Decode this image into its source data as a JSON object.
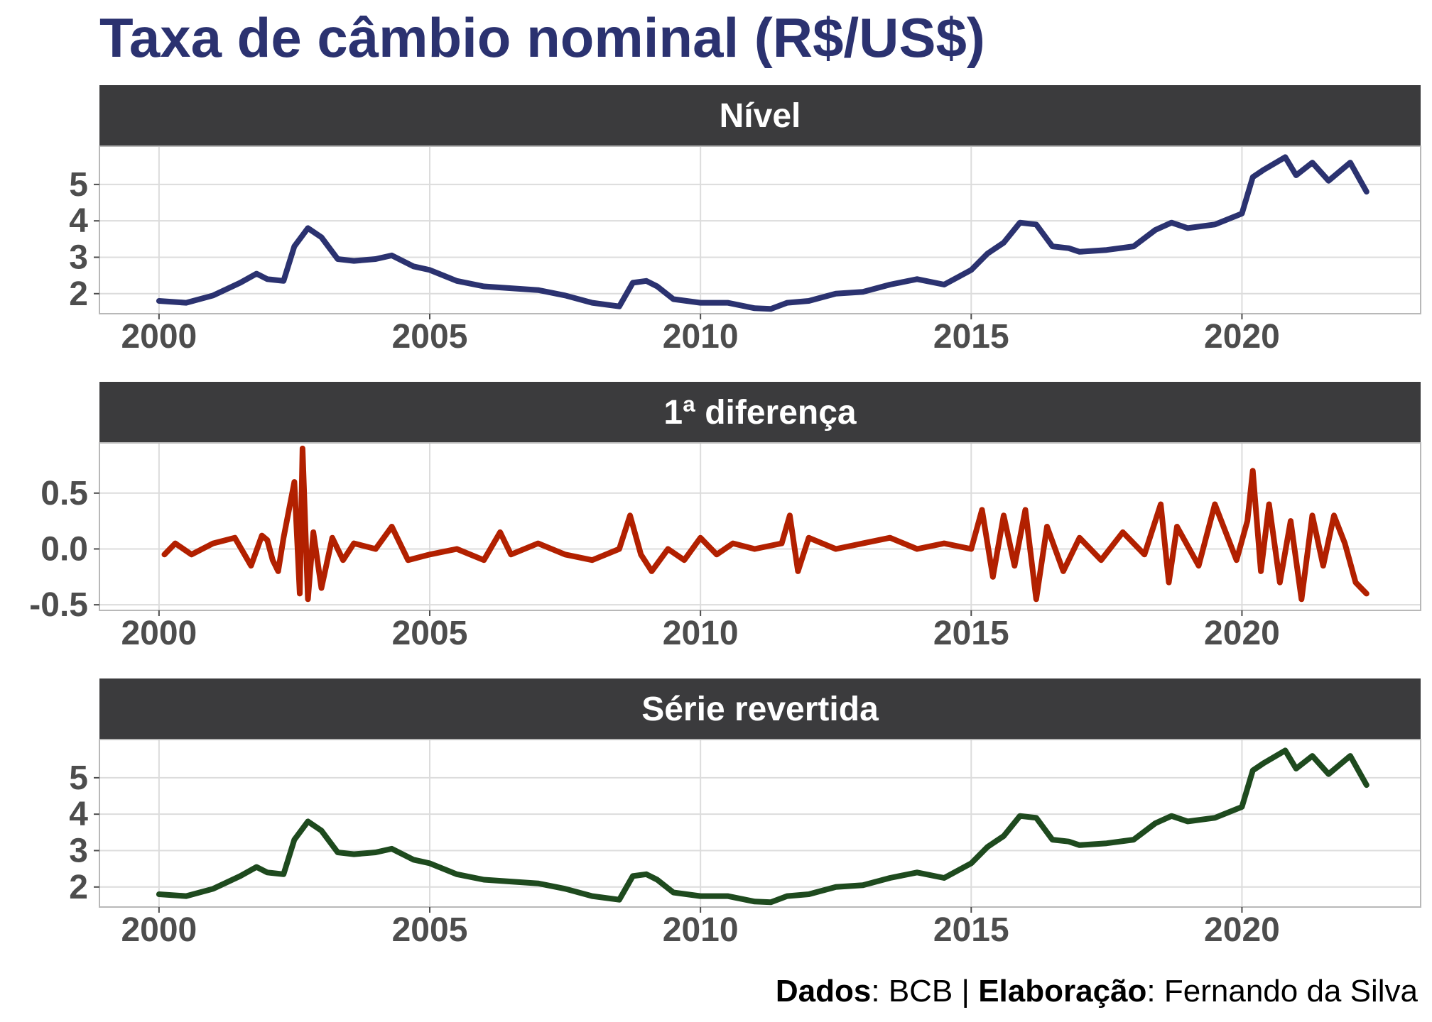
{
  "title": "Taxa de câmbio nominal (R$/US$)",
  "caption": {
    "source_label": "Dados",
    "source_value": "BCB",
    "separator": "|",
    "author_label": "Elaboração",
    "author_value": "Fernando da Silva"
  },
  "chart_data": [
    {
      "type": "line",
      "title": "Nível",
      "color": "#2B3270",
      "xlabel": "",
      "ylabel": "",
      "xlim": [
        1998.9,
        2023.3
      ],
      "ylim": [
        1.45,
        6.05
      ],
      "xticks": [
        2000,
        2005,
        2010,
        2015,
        2020
      ],
      "yticks": [
        2,
        3,
        4,
        5
      ],
      "ytick_labels": [
        "2",
        "3",
        "4",
        "5"
      ],
      "grid": true,
      "series": [
        {
          "x": [
            2000.0,
            2000.5,
            2001.0,
            2001.5,
            2001.8,
            2002.0,
            2002.3,
            2002.5,
            2002.75,
            2003.0,
            2003.3,
            2003.6,
            2004.0,
            2004.3,
            2004.7,
            2005.0,
            2005.5,
            2006.0,
            2006.5,
            2007.0,
            2007.5,
            2008.0,
            2008.5,
            2008.75,
            2009.0,
            2009.2,
            2009.5,
            2010.0,
            2010.5,
            2011.0,
            2011.3,
            2011.6,
            2012.0,
            2012.5,
            2013.0,
            2013.5,
            2014.0,
            2014.5,
            2015.0,
            2015.3,
            2015.6,
            2015.9,
            2016.2,
            2016.5,
            2016.8,
            2017.0,
            2017.5,
            2018.0,
            2018.4,
            2018.7,
            2019.0,
            2019.5,
            2020.0,
            2020.2,
            2020.4,
            2020.8,
            2021.0,
            2021.3,
            2021.6,
            2022.0,
            2022.3
          ],
          "y": [
            1.8,
            1.75,
            1.95,
            2.3,
            2.55,
            2.4,
            2.35,
            3.3,
            3.8,
            3.55,
            2.95,
            2.9,
            2.95,
            3.05,
            2.75,
            2.65,
            2.35,
            2.2,
            2.15,
            2.1,
            1.95,
            1.75,
            1.65,
            2.3,
            2.35,
            2.2,
            1.85,
            1.75,
            1.75,
            1.6,
            1.58,
            1.75,
            1.8,
            2.0,
            2.05,
            2.25,
            2.4,
            2.25,
            2.65,
            3.1,
            3.4,
            3.95,
            3.9,
            3.3,
            3.25,
            3.15,
            3.2,
            3.3,
            3.75,
            3.95,
            3.8,
            3.9,
            4.2,
            5.2,
            5.4,
            5.75,
            5.25,
            5.6,
            5.1,
            5.6,
            4.8
          ]
        }
      ]
    },
    {
      "type": "line",
      "title": "1ª diferença",
      "color": "#B22000",
      "xlabel": "",
      "ylabel": "",
      "xlim": [
        1998.9,
        2023.3
      ],
      "ylim": [
        -0.55,
        0.95
      ],
      "xticks": [
        2000,
        2005,
        2010,
        2015,
        2020
      ],
      "yticks": [
        -0.5,
        0.0,
        0.5
      ],
      "ytick_labels": [
        "-0.5",
        "0.0",
        "0.5"
      ],
      "grid": true,
      "series": [
        {
          "x": [
            2000.1,
            2000.3,
            2000.6,
            2001.0,
            2001.4,
            2001.7,
            2001.9,
            2002.0,
            2002.1,
            2002.2,
            2002.3,
            2002.5,
            2002.6,
            2002.65,
            2002.75,
            2002.85,
            2003.0,
            2003.2,
            2003.4,
            2003.6,
            2004.0,
            2004.3,
            2004.6,
            2005.0,
            2005.5,
            2006.0,
            2006.3,
            2006.5,
            2007.0,
            2007.5,
            2008.0,
            2008.5,
            2008.7,
            2008.9,
            2009.1,
            2009.4,
            2009.7,
            2010.0,
            2010.3,
            2010.6,
            2011.0,
            2011.5,
            2011.65,
            2011.8,
            2012.0,
            2012.5,
            2013.0,
            2013.5,
            2014.0,
            2014.5,
            2015.0,
            2015.2,
            2015.4,
            2015.6,
            2015.8,
            2016.0,
            2016.2,
            2016.4,
            2016.7,
            2017.0,
            2017.4,
            2017.8,
            2018.2,
            2018.5,
            2018.65,
            2018.8,
            2019.2,
            2019.5,
            2019.9,
            2020.1,
            2020.2,
            2020.35,
            2020.5,
            2020.7,
            2020.9,
            2021.1,
            2021.3,
            2021.5,
            2021.7,
            2021.9,
            2022.1,
            2022.3
          ],
          "y": [
            -0.05,
            0.05,
            -0.05,
            0.05,
            0.1,
            -0.15,
            0.12,
            0.08,
            -0.1,
            -0.2,
            0.1,
            0.6,
            -0.4,
            0.9,
            -0.45,
            0.15,
            -0.35,
            0.1,
            -0.1,
            0.05,
            0.0,
            0.2,
            -0.1,
            -0.05,
            0.0,
            -0.1,
            0.15,
            -0.05,
            0.05,
            -0.05,
            -0.1,
            0.0,
            0.3,
            -0.05,
            -0.2,
            0.0,
            -0.1,
            0.1,
            -0.05,
            0.05,
            0.0,
            0.05,
            0.3,
            -0.2,
            0.1,
            0.0,
            0.05,
            0.1,
            0.0,
            0.05,
            0.0,
            0.35,
            -0.25,
            0.3,
            -0.15,
            0.35,
            -0.45,
            0.2,
            -0.2,
            0.1,
            -0.1,
            0.15,
            -0.05,
            0.4,
            -0.3,
            0.2,
            -0.15,
            0.4,
            -0.1,
            0.25,
            0.7,
            -0.2,
            0.4,
            -0.3,
            0.25,
            -0.45,
            0.3,
            -0.15,
            0.3,
            0.05,
            -0.3,
            -0.4
          ]
        }
      ]
    },
    {
      "type": "line",
      "title": "Série revertida",
      "color": "#1E4A1E",
      "xlabel": "",
      "ylabel": "",
      "xlim": [
        1998.9,
        2023.3
      ],
      "ylim": [
        1.45,
        6.05
      ],
      "xticks": [
        2000,
        2005,
        2010,
        2015,
        2020
      ],
      "yticks": [
        2,
        3,
        4,
        5
      ],
      "ytick_labels": [
        "2",
        "3",
        "4",
        "5"
      ],
      "grid": true,
      "series": [
        {
          "x": [
            2000.0,
            2000.5,
            2001.0,
            2001.5,
            2001.8,
            2002.0,
            2002.3,
            2002.5,
            2002.75,
            2003.0,
            2003.3,
            2003.6,
            2004.0,
            2004.3,
            2004.7,
            2005.0,
            2005.5,
            2006.0,
            2006.5,
            2007.0,
            2007.5,
            2008.0,
            2008.5,
            2008.75,
            2009.0,
            2009.2,
            2009.5,
            2010.0,
            2010.5,
            2011.0,
            2011.3,
            2011.6,
            2012.0,
            2012.5,
            2013.0,
            2013.5,
            2014.0,
            2014.5,
            2015.0,
            2015.3,
            2015.6,
            2015.9,
            2016.2,
            2016.5,
            2016.8,
            2017.0,
            2017.5,
            2018.0,
            2018.4,
            2018.7,
            2019.0,
            2019.5,
            2020.0,
            2020.2,
            2020.4,
            2020.8,
            2021.0,
            2021.3,
            2021.6,
            2022.0,
            2022.3
          ],
          "y": [
            1.8,
            1.75,
            1.95,
            2.3,
            2.55,
            2.4,
            2.35,
            3.3,
            3.8,
            3.55,
            2.95,
            2.9,
            2.95,
            3.05,
            2.75,
            2.65,
            2.35,
            2.2,
            2.15,
            2.1,
            1.95,
            1.75,
            1.65,
            2.3,
            2.35,
            2.2,
            1.85,
            1.75,
            1.75,
            1.6,
            1.58,
            1.75,
            1.8,
            2.0,
            2.05,
            2.25,
            2.4,
            2.25,
            2.65,
            3.1,
            3.4,
            3.95,
            3.9,
            3.3,
            3.25,
            3.15,
            3.2,
            3.3,
            3.75,
            3.95,
            3.8,
            3.9,
            4.2,
            5.2,
            5.4,
            5.75,
            5.25,
            5.6,
            5.1,
            5.6,
            4.8
          ]
        }
      ]
    }
  ]
}
